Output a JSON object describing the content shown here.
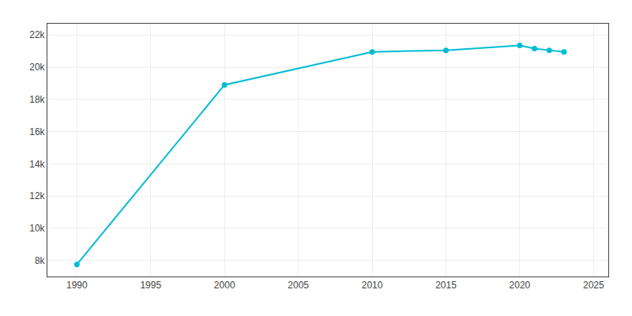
{
  "chart_data": {
    "type": "line",
    "x": [
      1990,
      2000,
      2010,
      2015,
      2020,
      2021,
      2022,
      2023
    ],
    "values": [
      7750,
      18900,
      20950,
      21050,
      21350,
      21150,
      21050,
      20950
    ],
    "color": "#00BCD4",
    "marker": "circle",
    "xlim": [
      1988,
      2026
    ],
    "xticks": [
      1990,
      1995,
      2000,
      2005,
      2010,
      2015,
      2020,
      2025
    ],
    "ylim": [
      7000,
      22700
    ],
    "yticks": [
      {
        "value": 8000,
        "label": "8k"
      },
      {
        "value": 10000,
        "label": "10k"
      },
      {
        "value": 12000,
        "label": "12k"
      },
      {
        "value": 14000,
        "label": "14k"
      },
      {
        "value": 16000,
        "label": "16k"
      },
      {
        "value": 18000,
        "label": "18k"
      },
      {
        "value": 20000,
        "label": "20k"
      },
      {
        "value": 22000,
        "label": "22k"
      }
    ],
    "grid": true
  }
}
